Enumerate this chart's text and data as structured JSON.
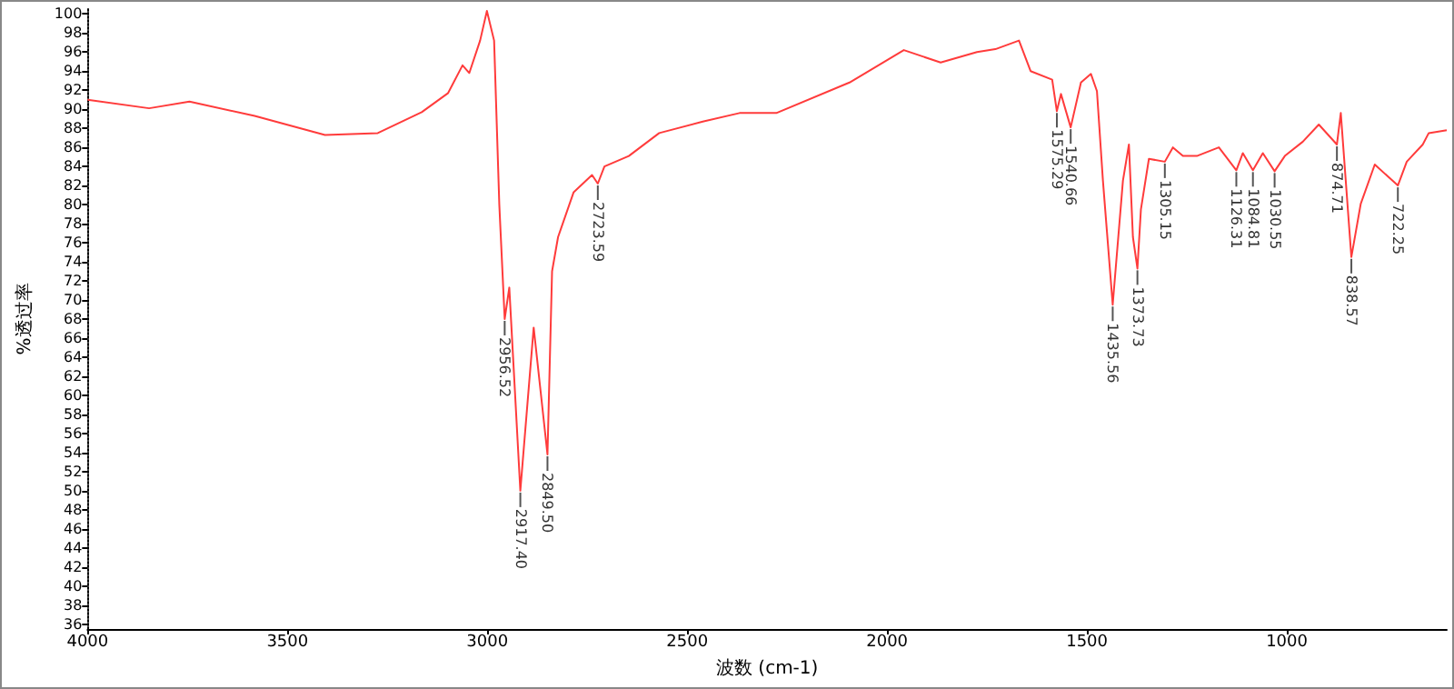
{
  "chart_data": {
    "type": "line",
    "xlabel": "波数 (cm-1)",
    "ylabel": "%透过率",
    "xlim": [
      4000,
      600
    ],
    "xticks": [
      4000,
      3500,
      3000,
      2500,
      2000,
      1500,
      1000
    ],
    "ylim": [
      35.5,
      100.5
    ],
    "yticks": [
      36,
      38,
      40,
      42,
      44,
      46,
      48,
      50,
      52,
      54,
      56,
      58,
      60,
      62,
      64,
      66,
      68,
      70,
      72,
      74,
      76,
      78,
      80,
      82,
      84,
      86,
      88,
      90,
      92,
      94,
      96,
      98,
      100
    ],
    "grid": false,
    "marker": "none",
    "line_style": "solid",
    "x": [
      4000,
      3846,
      3745,
      3582,
      3406,
      3274,
      3164,
      3098,
      3062,
      3045,
      3018,
      3001,
      2983,
      2970,
      2956.52,
      2945,
      2917.4,
      2884,
      2849.5,
      2838,
      2823,
      2784,
      2738,
      2723.59,
      2707,
      2646,
      2570,
      2461,
      2369,
      2277,
      2094,
      1958,
      1866,
      1775,
      1729,
      1670,
      1641,
      1587,
      1575.29,
      1565,
      1540.66,
      1515,
      1490,
      1475,
      1460,
      1435.56,
      1410,
      1395,
      1385,
      1373.73,
      1365,
      1345,
      1305.15,
      1285,
      1260,
      1225,
      1170,
      1126.31,
      1110,
      1084.81,
      1060,
      1030.55,
      1005,
      960,
      920,
      874.71,
      865,
      838.57,
      815,
      780,
      722.25,
      700,
      660,
      645,
      600
    ],
    "series": [
      {
        "color": "#ff3b3b",
        "values": [
          91.0,
          90.1,
          90.8,
          89.3,
          87.3,
          87.5,
          89.7,
          91.7,
          94.6,
          93.8,
          97.2,
          100.3,
          97.2,
          80.0,
          68.0,
          71.3,
          50.0,
          67.1,
          53.8,
          73.0,
          76.6,
          81.3,
          83.1,
          82.2,
          84.0,
          85.1,
          87.5,
          88.7,
          89.6,
          89.6,
          92.8,
          96.2,
          94.9,
          96.0,
          96.3,
          97.2,
          94.0,
          93.1,
          89.8,
          91.6,
          88.1,
          92.8,
          93.7,
          91.9,
          82.5,
          69.5,
          82.5,
          86.3,
          76.6,
          73.3,
          79.5,
          84.8,
          84.5,
          86.0,
          85.1,
          85.1,
          86.0,
          83.6,
          85.4,
          83.6,
          85.4,
          83.5,
          85.1,
          86.6,
          88.4,
          86.3,
          89.6,
          74.5,
          80.1,
          84.2,
          82.0,
          84.5,
          86.3,
          87.5,
          87.8
        ]
      }
    ],
    "annotations": [
      {
        "text": "2956.52",
        "x": 2956.52,
        "y": 68.0
      },
      {
        "text": "2917.40",
        "x": 2917.4,
        "y": 50.0
      },
      {
        "text": "2849.50",
        "x": 2849.5,
        "y": 53.8
      },
      {
        "text": "2723.59",
        "x": 2723.59,
        "y": 82.2
      },
      {
        "text": "1575.29",
        "x": 1575.29,
        "y": 89.8
      },
      {
        "text": "1540.66",
        "x": 1540.66,
        "y": 88.1
      },
      {
        "text": "1435.56",
        "x": 1435.56,
        "y": 69.5
      },
      {
        "text": "1373.73",
        "x": 1373.73,
        "y": 73.3
      },
      {
        "text": "1305.15",
        "x": 1305.15,
        "y": 84.5
      },
      {
        "text": "1126.31",
        "x": 1126.31,
        "y": 83.6
      },
      {
        "text": "1084.81",
        "x": 1084.81,
        "y": 83.6
      },
      {
        "text": "1030.55",
        "x": 1030.55,
        "y": 83.5
      },
      {
        "text": "874.71",
        "x": 874.71,
        "y": 86.3
      },
      {
        "text": "838.57",
        "x": 838.57,
        "y": 74.5
      },
      {
        "text": "722.25",
        "x": 722.25,
        "y": 82.0
      }
    ]
  }
}
